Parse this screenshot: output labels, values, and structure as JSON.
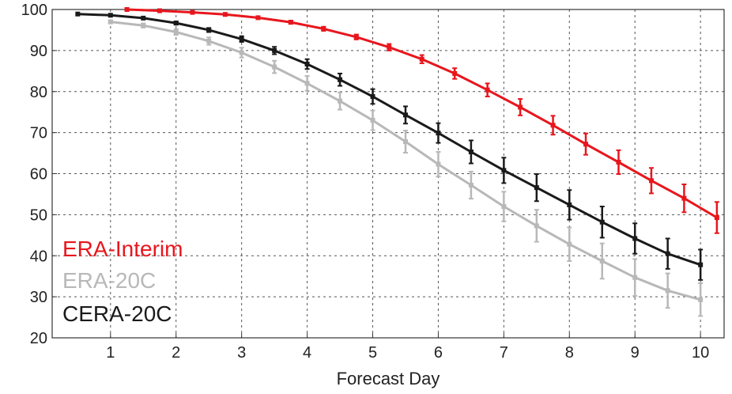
{
  "chart_data": {
    "type": "line",
    "title": "",
    "xlabel": "Forecast Day",
    "ylabel": "",
    "xlim": [
      0.11,
      10.36
    ],
    "ylim": [
      20,
      100
    ],
    "xticks": [
      "1",
      "2",
      "3",
      "4",
      "5",
      "6",
      "7",
      "8",
      "9",
      "10"
    ],
    "yticks": [
      "20",
      "30",
      "40",
      "50",
      "60",
      "70",
      "80",
      "90",
      "100"
    ],
    "grid": true,
    "legend_position": "bottom-left",
    "series": [
      {
        "name": "ERA-Interim",
        "color": "#e8161d",
        "x": [
          1.25,
          1.75,
          2.25,
          2.75,
          3.25,
          3.75,
          4.25,
          4.75,
          5.25,
          5.75,
          6.25,
          6.75,
          7.25,
          7.75,
          8.25,
          8.75,
          9.25,
          9.75,
          10.25
        ],
        "values": [
          100,
          99.7,
          99.3,
          98.8,
          98.0,
          96.9,
          95.3,
          93.3,
          90.8,
          87.9,
          84.4,
          80.4,
          76.2,
          71.8,
          67.2,
          62.8,
          58.3,
          54.0,
          49.3
        ],
        "errors": [
          0.1,
          0.1,
          0.2,
          0.2,
          0.3,
          0.4,
          0.5,
          0.6,
          0.8,
          1.0,
          1.3,
          1.6,
          2.0,
          2.3,
          2.6,
          2.9,
          3.1,
          3.4,
          3.8
        ]
      },
      {
        "name": "ERA-20C",
        "color": "#b8b8b8",
        "x": [
          1,
          1.5,
          2,
          2.5,
          3,
          3.5,
          4,
          4.5,
          5,
          5.5,
          6,
          6.5,
          7,
          7.5,
          8,
          8.5,
          9,
          9.5,
          10
        ],
        "values": [
          97.0,
          96.1,
          94.5,
          92.3,
          89.5,
          86.0,
          82.0,
          77.7,
          73.0,
          67.8,
          62.3,
          57.2,
          52.0,
          47.3,
          42.8,
          38.7,
          34.7,
          31.5,
          29.3
        ],
        "errors": [
          0.4,
          0.5,
          0.7,
          0.9,
          1.2,
          1.5,
          1.8,
          2.1,
          2.4,
          2.7,
          3.0,
          3.3,
          3.6,
          3.9,
          4.1,
          4.3,
          4.5,
          4.2,
          4.0
        ]
      },
      {
        "name": "CERA-20C",
        "color": "#1a1a1a",
        "x": [
          0.5,
          1,
          1.5,
          2,
          2.5,
          3,
          3.5,
          4,
          4.5,
          5,
          5.5,
          6,
          6.5,
          7,
          7.5,
          8,
          8.5,
          9,
          9.5,
          10
        ],
        "values": [
          98.9,
          98.6,
          97.9,
          96.7,
          95.0,
          92.8,
          90.0,
          86.7,
          82.9,
          78.8,
          74.3,
          69.9,
          65.3,
          60.8,
          56.6,
          52.4,
          48.2,
          44.2,
          40.5,
          37.8
        ],
        "errors": [
          0.1,
          0.2,
          0.3,
          0.4,
          0.5,
          0.7,
          0.9,
          1.2,
          1.5,
          1.8,
          2.1,
          2.4,
          2.8,
          3.1,
          3.3,
          3.6,
          3.8,
          3.7,
          3.7,
          3.7
        ]
      }
    ]
  }
}
